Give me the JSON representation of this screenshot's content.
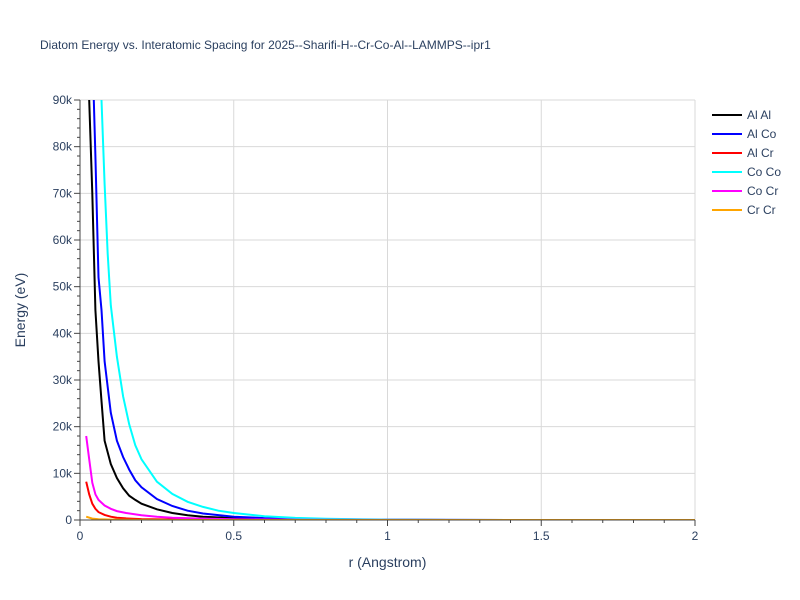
{
  "chart_data": {
    "type": "line",
    "title": "Diatom Energy vs. Interatomic Spacing for 2025--Sharifi-H--Cr-Co-Al--LAMMPS--ipr1",
    "xlabel": "r (Angstrom)",
    "ylabel": "Energy (eV)",
    "xlim": [
      0,
      2
    ],
    "ylim": [
      0,
      90000
    ],
    "x_ticks": [
      0,
      0.5,
      1,
      1.5,
      2
    ],
    "x_tick_labels": [
      "0",
      "0.5",
      "1",
      "1.5",
      "2"
    ],
    "y_ticks": [
      0,
      10000,
      20000,
      30000,
      40000,
      50000,
      60000,
      70000,
      80000,
      90000
    ],
    "y_tick_labels": [
      "0",
      "10k",
      "20k",
      "30k",
      "40k",
      "50k",
      "60k",
      "70k",
      "80k",
      "90k"
    ],
    "grid": true,
    "legend_position": "top-right",
    "series": [
      {
        "name": "Al Al",
        "color": "#000000",
        "x": [
          0.03,
          0.04,
          0.05,
          0.06,
          0.07,
          0.08,
          0.1,
          0.12,
          0.14,
          0.16,
          0.18,
          0.2,
          0.25,
          0.3,
          0.35,
          0.4,
          0.5,
          0.6,
          0.7,
          0.8,
          1.0,
          1.2,
          1.5,
          2.0
        ],
        "y": [
          90000,
          70000,
          45000,
          34000,
          25500,
          17000,
          12000,
          9000,
          6800,
          5200,
          4300,
          3500,
          2300,
          1500,
          1000,
          700,
          400,
          250,
          150,
          90,
          40,
          10,
          0,
          0
        ]
      },
      {
        "name": "Al Co",
        "color": "#0000ff",
        "x": [
          0.045,
          0.05,
          0.06,
          0.07,
          0.08,
          0.1,
          0.12,
          0.14,
          0.16,
          0.18,
          0.2,
          0.25,
          0.3,
          0.35,
          0.4,
          0.5,
          0.6,
          0.7,
          0.8,
          1.0,
          1.2,
          1.5,
          2.0
        ],
        "y": [
          90000,
          78000,
          52000,
          45000,
          34000,
          23000,
          17000,
          13500,
          10800,
          8500,
          7000,
          4500,
          3000,
          2000,
          1400,
          700,
          400,
          250,
          150,
          60,
          20,
          0,
          0
        ]
      },
      {
        "name": "Al Cr",
        "color": "#ff0000",
        "x": [
          0.02,
          0.03,
          0.04,
          0.05,
          0.06,
          0.08,
          0.1,
          0.12,
          0.15,
          0.2,
          0.3,
          0.5,
          1.0,
          1.5,
          2.0
        ],
        "y": [
          8200,
          5500,
          3500,
          2400,
          1700,
          1100,
          700,
          500,
          350,
          200,
          100,
          30,
          0,
          0,
          0
        ]
      },
      {
        "name": "Co Co",
        "color": "#00ffff",
        "x": [
          0.07,
          0.08,
          0.09,
          0.1,
          0.12,
          0.14,
          0.16,
          0.18,
          0.2,
          0.25,
          0.3,
          0.35,
          0.4,
          0.45,
          0.5,
          0.6,
          0.7,
          0.8,
          0.9,
          1.0,
          1.2,
          1.5,
          2.0
        ],
        "y": [
          90000,
          72000,
          57000,
          46000,
          35000,
          26500,
          20500,
          16000,
          13000,
          8200,
          5600,
          3900,
          2800,
          2000,
          1500,
          800,
          450,
          250,
          150,
          80,
          20,
          0,
          0
        ]
      },
      {
        "name": "Co Cr",
        "color": "#ff00ff",
        "x": [
          0.02,
          0.03,
          0.04,
          0.05,
          0.06,
          0.08,
          0.1,
          0.12,
          0.15,
          0.2,
          0.25,
          0.3,
          0.4,
          0.5,
          0.7,
          1.0,
          1.5,
          2.0
        ],
        "y": [
          18000,
          13000,
          8000,
          5500,
          4300,
          3100,
          2400,
          1900,
          1500,
          1000,
          700,
          500,
          300,
          150,
          60,
          20,
          0,
          0
        ]
      },
      {
        "name": "Cr Cr",
        "color": "#ffa500",
        "x": [
          0.02,
          0.04,
          0.06,
          0.08,
          0.1,
          0.15,
          0.2,
          0.3,
          0.5,
          1.0,
          2.0
        ],
        "y": [
          700,
          300,
          180,
          120,
          80,
          40,
          20,
          10,
          0,
          0,
          0
        ]
      }
    ]
  }
}
